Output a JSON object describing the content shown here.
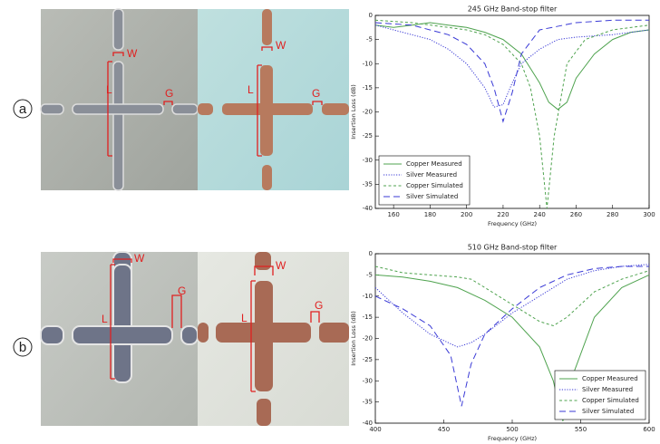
{
  "panels": [
    {
      "label": "a",
      "dimension_labels": [
        "L",
        "W",
        "G",
        "L",
        "W",
        "G"
      ]
    },
    {
      "label": "b",
      "dimension_labels": [
        "L",
        "W",
        "G",
        "L",
        "W",
        "G"
      ]
    }
  ],
  "chart_data": [
    {
      "type": "line",
      "title": "245 GHz Band-stop filter",
      "x_label": "Frequency (GHz)",
      "y_label": "Insertion Loss (dB)",
      "xlim": [
        150,
        300
      ],
      "xticks": [
        160,
        180,
        200,
        220,
        240,
        260,
        280,
        300
      ],
      "ylim": [
        -40,
        0
      ],
      "yticks": [
        0,
        -5,
        -10,
        -15,
        -20,
        -25,
        -30,
        -35,
        -40
      ],
      "legend": "lower left",
      "series": [
        {
          "name": "Copper Measured",
          "color": "#4fa34f",
          "style": "solid",
          "x": [
            150,
            160,
            170,
            180,
            190,
            200,
            210,
            220,
            230,
            240,
            245,
            250,
            255,
            260,
            270,
            280,
            290,
            300
          ],
          "values": [
            -2,
            -2.5,
            -2,
            -1.5,
            -2,
            -2.5,
            -3.5,
            -5,
            -8,
            -14,
            -18,
            -19.5,
            -18,
            -13,
            -8,
            -5,
            -3.5,
            -3
          ]
        },
        {
          "name": "Silver Measured",
          "color": "#3a3ad6",
          "style": "dotted",
          "x": [
            150,
            160,
            170,
            180,
            190,
            200,
            210,
            215,
            220,
            225,
            230,
            240,
            250,
            260,
            280,
            300
          ],
          "values": [
            -2,
            -3,
            -4,
            -5,
            -7,
            -10,
            -15,
            -19,
            -18.5,
            -14,
            -10,
            -7,
            -5,
            -4.5,
            -4,
            -3
          ]
        },
        {
          "name": "Copper Simulated",
          "color": "#4fa34f",
          "style": "dashed",
          "x": [
            150,
            170,
            190,
            200,
            210,
            220,
            230,
            235,
            240,
            244,
            248,
            255,
            265,
            280,
            300
          ],
          "values": [
            -1,
            -1.5,
            -2.5,
            -3,
            -4,
            -6,
            -10,
            -15,
            -25,
            -40,
            -25,
            -10,
            -5,
            -3,
            -2
          ]
        },
        {
          "name": "Silver Simulated",
          "color": "#3a3ad6",
          "style": "longdash",
          "x": [
            150,
            170,
            190,
            200,
            210,
            215,
            220,
            225,
            230,
            240,
            260,
            280,
            300
          ],
          "values": [
            -1.5,
            -2,
            -4,
            -6,
            -10,
            -15,
            -22,
            -16,
            -8,
            -3,
            -1.5,
            -1,
            -1
          ]
        }
      ]
    },
    {
      "type": "line",
      "title": "510 GHz Band-stop filter",
      "x_label": "Frequency (GHz)",
      "y_label": "Insertion Loss (dB)",
      "xlim": [
        400,
        600
      ],
      "xticks": [
        400,
        450,
        500,
        550,
        600
      ],
      "ylim": [
        -40,
        0
      ],
      "yticks": [
        0,
        -5,
        -10,
        -15,
        -20,
        -25,
        -30,
        -35,
        -40
      ],
      "legend": "lower right",
      "series": [
        {
          "name": "Copper Measured",
          "color": "#4fa34f",
          "style": "solid",
          "x": [
            400,
            420,
            440,
            460,
            480,
            500,
            520,
            530,
            537,
            545,
            560,
            580,
            600
          ],
          "values": [
            -5,
            -5.5,
            -6.5,
            -8,
            -11,
            -15,
            -22,
            -30,
            -39.5,
            -28,
            -15,
            -8,
            -5
          ]
        },
        {
          "name": "Silver Measured",
          "color": "#3a3ad6",
          "style": "dotted",
          "x": [
            400,
            420,
            440,
            460,
            470,
            480,
            500,
            520,
            540,
            560,
            580,
            600
          ],
          "values": [
            -8,
            -14,
            -19,
            -22,
            -21,
            -19,
            -14,
            -10,
            -6,
            -4,
            -3,
            -2.5
          ]
        },
        {
          "name": "Copper Simulated",
          "color": "#4fa34f",
          "style": "dashed",
          "x": [
            400,
            420,
            440,
            460,
            470,
            480,
            500,
            520,
            530,
            540,
            560,
            580,
            600
          ],
          "values": [
            -3,
            -4.5,
            -5,
            -5.5,
            -6,
            -8,
            -12,
            -16,
            -17,
            -15,
            -9,
            -6,
            -4
          ]
        },
        {
          "name": "Silver Simulated",
          "color": "#3a3ad6",
          "style": "longdash",
          "x": [
            400,
            420,
            440,
            455,
            463,
            470,
            480,
            500,
            520,
            540,
            560,
            580,
            600
          ],
          "values": [
            -10,
            -13,
            -17,
            -24,
            -36,
            -26,
            -19,
            -13,
            -8,
            -5,
            -3.5,
            -3,
            -3
          ]
        }
      ]
    }
  ]
}
